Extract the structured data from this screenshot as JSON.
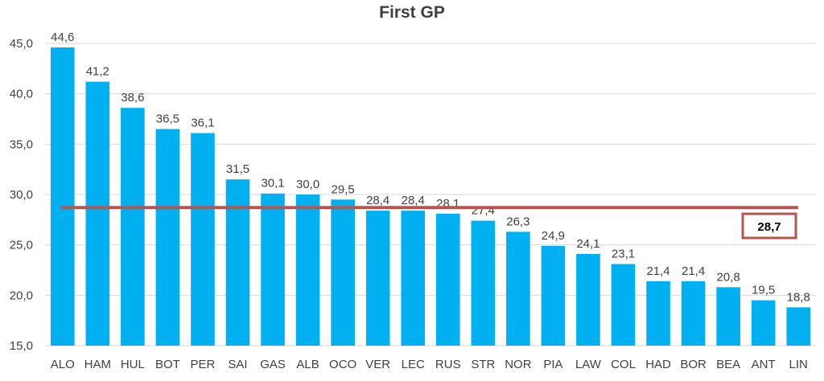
{
  "chart_data": {
    "type": "bar",
    "title": "First GP",
    "xlabel": "",
    "ylabel": "",
    "ylim": [
      15.0,
      45.0
    ],
    "ytick_values": [
      15,
      20,
      25,
      30,
      35,
      40,
      45
    ],
    "ytick_labels": [
      "15,0",
      "20,0",
      "25,0",
      "30,0",
      "35,0",
      "40,0",
      "45,0"
    ],
    "grid": true,
    "categories": [
      "ALO",
      "HAM",
      "HUL",
      "BOT",
      "PER",
      "SAI",
      "GAS",
      "ALB",
      "OCO",
      "VER",
      "LEC",
      "RUS",
      "STR",
      "NOR",
      "PIA",
      "LAW",
      "COL",
      "HAD",
      "BOR",
      "BEA",
      "ANT",
      "LIN"
    ],
    "values": [
      44.6,
      41.2,
      38.6,
      36.5,
      36.1,
      31.5,
      30.1,
      30.0,
      29.5,
      28.4,
      28.4,
      28.1,
      27.4,
      26.3,
      24.9,
      24.1,
      23.1,
      21.4,
      21.4,
      20.8,
      19.5,
      18.8
    ],
    "value_labels": [
      "44,6",
      "41,2",
      "38,6",
      "36,5",
      "36,1",
      "31,5",
      "30,1",
      "30,0",
      "29,5",
      "28,4",
      "28,4",
      "28,1",
      "27,4",
      "26,3",
      "24,9",
      "24,1",
      "23,1",
      "21,4",
      "21,4",
      "20,8",
      "19,5",
      "18,8"
    ],
    "average": {
      "value": 28.7,
      "label": "28,7"
    },
    "colors": {
      "bar": "#00B0F0",
      "average_line": "#B85450",
      "grid": "#D9D9D9",
      "text": "#404040"
    }
  }
}
